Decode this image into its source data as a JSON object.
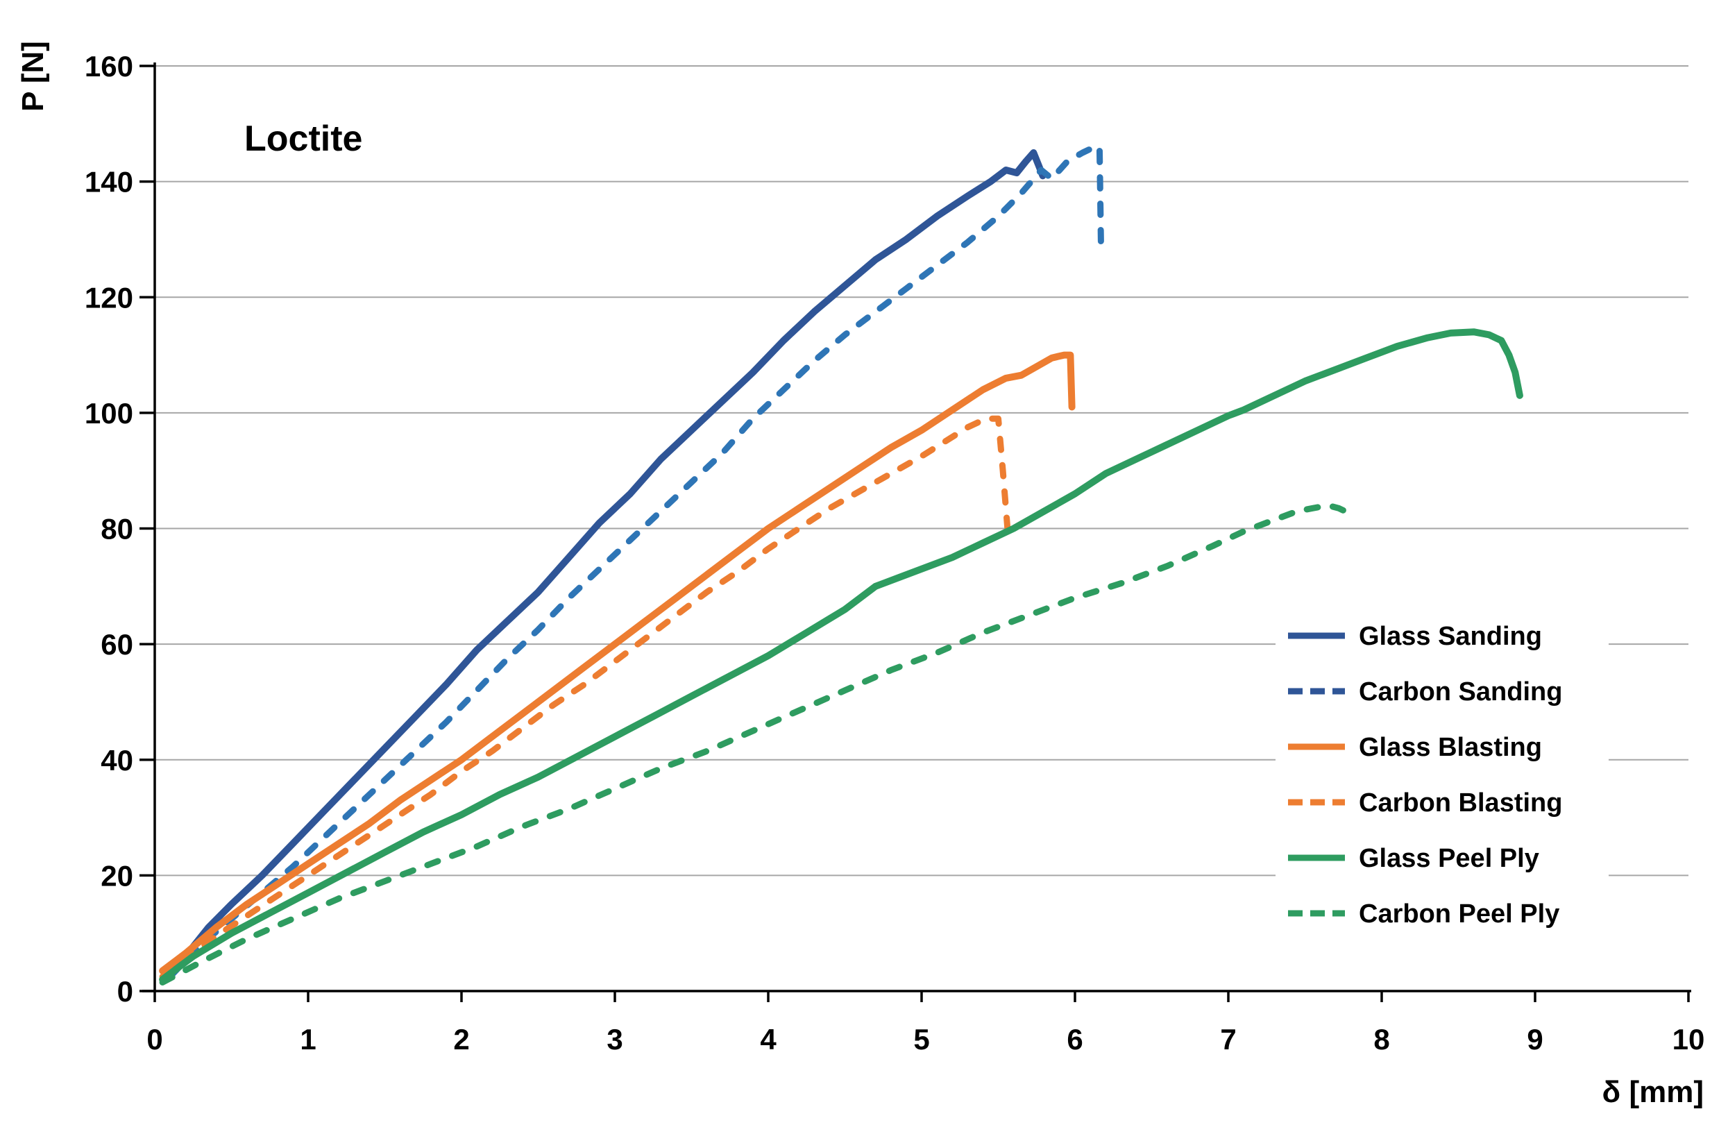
{
  "title": "Loctite",
  "axes": {
    "x": {
      "title": "δ [mm]",
      "min": 0,
      "max": 10,
      "tick_step": 1,
      "tick_labels": [
        "0",
        "1",
        "2",
        "3",
        "4",
        "5",
        "6",
        "7",
        "8",
        "9",
        "10"
      ]
    },
    "y": {
      "title": "P [N]",
      "min": 0,
      "max": 160,
      "tick_step": 20,
      "tick_labels": [
        "0",
        "20",
        "40",
        "60",
        "80",
        "100",
        "120",
        "140",
        "160"
      ]
    }
  },
  "colors": {
    "background": "#FFFFFF",
    "axis": "#000000",
    "grid": "#A6A6A6",
    "navy": "#2F5597",
    "light_blue": "#2E75B6",
    "orange": "#ED7D31",
    "green": "#2E9C60"
  },
  "legend": {
    "position": "inside-right-middle",
    "items": [
      "Glass Sanding",
      "Carbon Sanding",
      "Glass Blasting",
      "Carbon Blasting",
      "Glass Peel Ply",
      "Carbon Peel Ply"
    ]
  },
  "chart_data": {
    "type": "line",
    "title": "Loctite",
    "xlabel": "δ [mm]",
    "ylabel": "P [N]",
    "xlim": [
      0,
      10
    ],
    "ylim": [
      0,
      160
    ],
    "grid": "horizontal",
    "legend_position": "inside right middle",
    "series": [
      {
        "name": "Glass Sanding",
        "color": "#2F5597",
        "dash": "solid",
        "points": [
          [
            0.07,
            2.5
          ],
          [
            0.2,
            6
          ],
          [
            0.35,
            11
          ],
          [
            0.5,
            15
          ],
          [
            0.7,
            20
          ],
          [
            0.9,
            25.5
          ],
          [
            1.1,
            31
          ],
          [
            1.3,
            36.5
          ],
          [
            1.5,
            42
          ],
          [
            1.7,
            47.5
          ],
          [
            1.9,
            53
          ],
          [
            2.1,
            59
          ],
          [
            2.3,
            64
          ],
          [
            2.5,
            69
          ],
          [
            2.7,
            75
          ],
          [
            2.9,
            81
          ],
          [
            3.1,
            86
          ],
          [
            3.3,
            92
          ],
          [
            3.5,
            97
          ],
          [
            3.7,
            102
          ],
          [
            3.9,
            107
          ],
          [
            4.1,
            112.5
          ],
          [
            4.3,
            117.5
          ],
          [
            4.5,
            122
          ],
          [
            4.7,
            126.5
          ],
          [
            4.9,
            130
          ],
          [
            5.1,
            134
          ],
          [
            5.3,
            137.5
          ],
          [
            5.45,
            140
          ],
          [
            5.55,
            142
          ],
          [
            5.62,
            141.5
          ],
          [
            5.68,
            143.5
          ],
          [
            5.73,
            145
          ],
          [
            5.76,
            143
          ],
          [
            5.79,
            141
          ]
        ]
      },
      {
        "name": "Carbon Sanding",
        "color": "#2E75B6",
        "legend_color": "#2F5597",
        "dash": "dashed",
        "points": [
          [
            0.1,
            2.5
          ],
          [
            0.3,
            8
          ],
          [
            0.5,
            12.5
          ],
          [
            0.7,
            17
          ],
          [
            0.9,
            21.5
          ],
          [
            1.1,
            26.5
          ],
          [
            1.3,
            31.5
          ],
          [
            1.5,
            36.5
          ],
          [
            1.7,
            41.5
          ],
          [
            1.9,
            46.5
          ],
          [
            2.1,
            52
          ],
          [
            2.3,
            57.5
          ],
          [
            2.5,
            62.5
          ],
          [
            2.7,
            68
          ],
          [
            2.9,
            73
          ],
          [
            3.1,
            78
          ],
          [
            3.3,
            83
          ],
          [
            3.5,
            88
          ],
          [
            3.7,
            93
          ],
          [
            3.9,
            99
          ],
          [
            4.1,
            104
          ],
          [
            4.3,
            109
          ],
          [
            4.5,
            113.5
          ],
          [
            4.7,
            117.5
          ],
          [
            4.9,
            121.5
          ],
          [
            5.1,
            125.5
          ],
          [
            5.3,
            129.5
          ],
          [
            5.5,
            134
          ],
          [
            5.65,
            138
          ],
          [
            5.78,
            142
          ],
          [
            5.85,
            140.5
          ],
          [
            5.95,
            143.5
          ],
          [
            6.05,
            145
          ],
          [
            6.13,
            146
          ],
          [
            6.16,
            146
          ],
          [
            6.17,
            128
          ]
        ]
      },
      {
        "name": "Glass Blasting",
        "color": "#ED7D31",
        "dash": "solid",
        "points": [
          [
            0.05,
            3.5
          ],
          [
            0.2,
            6.5
          ],
          [
            0.4,
            11
          ],
          [
            0.6,
            15
          ],
          [
            0.8,
            18.5
          ],
          [
            1.0,
            22
          ],
          [
            1.2,
            25.5
          ],
          [
            1.4,
            29
          ],
          [
            1.6,
            33
          ],
          [
            1.8,
            36.5
          ],
          [
            2.0,
            40
          ],
          [
            2.2,
            44
          ],
          [
            2.4,
            48
          ],
          [
            2.6,
            52
          ],
          [
            2.8,
            56
          ],
          [
            3.0,
            60
          ],
          [
            3.2,
            64
          ],
          [
            3.4,
            68
          ],
          [
            3.6,
            72
          ],
          [
            3.8,
            76
          ],
          [
            4.0,
            80
          ],
          [
            4.2,
            83.5
          ],
          [
            4.4,
            87
          ],
          [
            4.6,
            90.5
          ],
          [
            4.8,
            94
          ],
          [
            5.0,
            97
          ],
          [
            5.2,
            100.5
          ],
          [
            5.4,
            104
          ],
          [
            5.55,
            106
          ],
          [
            5.65,
            106.5
          ],
          [
            5.75,
            108
          ],
          [
            5.85,
            109.5
          ],
          [
            5.93,
            110
          ],
          [
            5.97,
            110
          ],
          [
            5.98,
            101
          ]
        ]
      },
      {
        "name": "Carbon Blasting",
        "color": "#ED7D31",
        "dash": "dashed",
        "points": [
          [
            0.05,
            2.5
          ],
          [
            0.2,
            5.5
          ],
          [
            0.4,
            9.5
          ],
          [
            0.6,
            13
          ],
          [
            0.8,
            16.5
          ],
          [
            1.0,
            20
          ],
          [
            1.2,
            23.5
          ],
          [
            1.4,
            27
          ],
          [
            1.6,
            30.5
          ],
          [
            1.8,
            34
          ],
          [
            2.0,
            38
          ],
          [
            2.2,
            41.5
          ],
          [
            2.4,
            45.5
          ],
          [
            2.6,
            49.5
          ],
          [
            2.8,
            53
          ],
          [
            3.0,
            57
          ],
          [
            3.2,
            61
          ],
          [
            3.4,
            65
          ],
          [
            3.6,
            69
          ],
          [
            3.8,
            72.5
          ],
          [
            4.0,
            76.5
          ],
          [
            4.2,
            80
          ],
          [
            4.4,
            83.5
          ],
          [
            4.6,
            86.5
          ],
          [
            4.8,
            89.5
          ],
          [
            5.0,
            92.5
          ],
          [
            5.15,
            95
          ],
          [
            5.3,
            97.5
          ],
          [
            5.42,
            99
          ],
          [
            5.5,
            99
          ],
          [
            5.53,
            90
          ],
          [
            5.56,
            80
          ]
        ]
      },
      {
        "name": "Glass Peel Ply",
        "color": "#2E9C60",
        "dash": "solid",
        "points": [
          [
            0.05,
            2
          ],
          [
            0.25,
            6
          ],
          [
            0.5,
            10
          ],
          [
            0.75,
            13.5
          ],
          [
            1.0,
            17
          ],
          [
            1.25,
            20.5
          ],
          [
            1.5,
            24
          ],
          [
            1.75,
            27.5
          ],
          [
            2.0,
            30.5
          ],
          [
            2.25,
            34
          ],
          [
            2.5,
            37
          ],
          [
            2.75,
            40.5
          ],
          [
            3.0,
            44
          ],
          [
            3.25,
            47.5
          ],
          [
            3.5,
            51
          ],
          [
            3.75,
            54.5
          ],
          [
            4.0,
            58
          ],
          [
            4.25,
            62
          ],
          [
            4.5,
            66
          ],
          [
            4.7,
            70
          ],
          [
            4.85,
            71.5
          ],
          [
            5.0,
            73
          ],
          [
            5.2,
            75
          ],
          [
            5.4,
            77.5
          ],
          [
            5.6,
            80
          ],
          [
            5.8,
            83
          ],
          [
            6.0,
            86
          ],
          [
            6.2,
            89.5
          ],
          [
            6.4,
            92
          ],
          [
            6.6,
            94.5
          ],
          [
            6.8,
            97
          ],
          [
            7.0,
            99.5
          ],
          [
            7.1,
            100.5
          ],
          [
            7.3,
            103
          ],
          [
            7.5,
            105.5
          ],
          [
            7.7,
            107.5
          ],
          [
            7.9,
            109.5
          ],
          [
            8.1,
            111.5
          ],
          [
            8.3,
            113
          ],
          [
            8.45,
            113.8
          ],
          [
            8.6,
            114
          ],
          [
            8.7,
            113.5
          ],
          [
            8.78,
            112.5
          ],
          [
            8.83,
            110
          ],
          [
            8.87,
            107
          ],
          [
            8.9,
            103
          ]
        ]
      },
      {
        "name": "Carbon Peel Ply",
        "color": "#2E9C60",
        "dash": "dashed",
        "points": [
          [
            0.05,
            1.5
          ],
          [
            0.3,
            5
          ],
          [
            0.6,
            9
          ],
          [
            0.9,
            12.5
          ],
          [
            1.2,
            16
          ],
          [
            1.5,
            19
          ],
          [
            1.8,
            22
          ],
          [
            2.1,
            25
          ],
          [
            2.4,
            28.5
          ],
          [
            2.7,
            31.5
          ],
          [
            3.0,
            35
          ],
          [
            3.3,
            38.5
          ],
          [
            3.6,
            41.5
          ],
          [
            3.9,
            45
          ],
          [
            4.2,
            48.5
          ],
          [
            4.5,
            52
          ],
          [
            4.8,
            55.5
          ],
          [
            5.1,
            58.5
          ],
          [
            5.4,
            62
          ],
          [
            5.7,
            65
          ],
          [
            6.0,
            68
          ],
          [
            6.3,
            70.5
          ],
          [
            6.6,
            73.5
          ],
          [
            6.9,
            77
          ],
          [
            7.1,
            79.5
          ],
          [
            7.3,
            81.5
          ],
          [
            7.45,
            83
          ],
          [
            7.55,
            83.5
          ],
          [
            7.65,
            84
          ],
          [
            7.72,
            83.5
          ],
          [
            7.8,
            82.5
          ]
        ]
      }
    ]
  }
}
